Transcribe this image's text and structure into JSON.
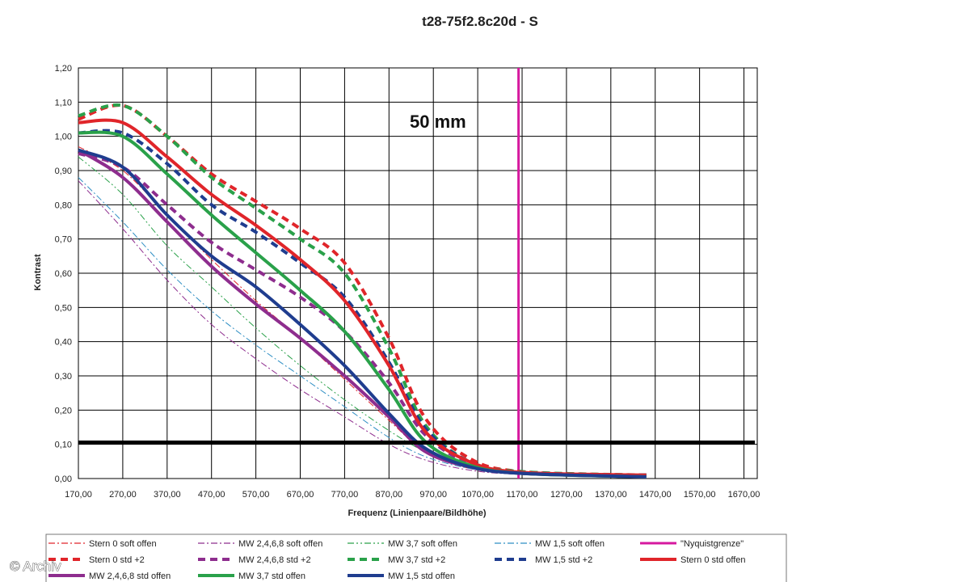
{
  "chart_data": {
    "type": "line",
    "title": "t28-75f2.8c20d - S",
    "annotation": "50 mm",
    "xlabel": "Frequenz (Linienpaare/Bildhöhe)",
    "ylabel": "Kontrast",
    "xlim": [
      170,
      1700
    ],
    "ylim": [
      0,
      1.2
    ],
    "x_ticks": [
      "170,00",
      "270,00",
      "370,00",
      "470,00",
      "570,00",
      "670,00",
      "770,00",
      "870,00",
      "970,00",
      "1070,00",
      "1170,00",
      "1270,00",
      "1370,00",
      "1470,00",
      "1570,00",
      "1670,00"
    ],
    "y_ticks": [
      "0,00",
      "0,10",
      "0,20",
      "0,30",
      "0,40",
      "0,50",
      "0,60",
      "0,70",
      "0,80",
      "0,90",
      "1,00",
      "1,10",
      "1,20"
    ],
    "grid": true,
    "legend_position": "bottom",
    "series": [
      {
        "name": "Stern 0 soft offen",
        "color": "#e0252a",
        "style": "dashdot",
        "width": 1,
        "points": [
          [
            170,
            0.97
          ],
          [
            270,
            0.9
          ],
          [
            370,
            0.77
          ],
          [
            470,
            0.64
          ],
          [
            570,
            0.52
          ],
          [
            670,
            0.41
          ],
          [
            770,
            0.29
          ],
          [
            870,
            0.17
          ],
          [
            950,
            0.08
          ],
          [
            1050,
            0.03
          ],
          [
            1170,
            0.015
          ],
          [
            1450,
            0.01
          ]
        ]
      },
      {
        "name": "MW 2,4,6,8 soft offen",
        "color": "#8e2d8e",
        "style": "dashdot",
        "width": 1,
        "points": [
          [
            170,
            0.87
          ],
          [
            270,
            0.73
          ],
          [
            370,
            0.58
          ],
          [
            470,
            0.45
          ],
          [
            570,
            0.35
          ],
          [
            670,
            0.26
          ],
          [
            770,
            0.18
          ],
          [
            870,
            0.1
          ],
          [
            950,
            0.055
          ],
          [
            1050,
            0.025
          ],
          [
            1170,
            0.012
          ],
          [
            1450,
            0.005
          ]
        ]
      },
      {
        "name": "MW 3,7 soft offen",
        "color": "#2aa14a",
        "style": "dashdot2",
        "width": 1,
        "points": [
          [
            170,
            0.94
          ],
          [
            270,
            0.83
          ],
          [
            370,
            0.68
          ],
          [
            470,
            0.56
          ],
          [
            570,
            0.44
          ],
          [
            670,
            0.33
          ],
          [
            770,
            0.23
          ],
          [
            870,
            0.14
          ],
          [
            950,
            0.08
          ],
          [
            1050,
            0.035
          ],
          [
            1170,
            0.015
          ],
          [
            1450,
            0.005
          ]
        ]
      },
      {
        "name": "MW 1,5 soft offen",
        "color": "#2f8fc4",
        "style": "dashdot",
        "width": 1,
        "points": [
          [
            170,
            0.88
          ],
          [
            270,
            0.75
          ],
          [
            370,
            0.61
          ],
          [
            470,
            0.49
          ],
          [
            570,
            0.39
          ],
          [
            670,
            0.3
          ],
          [
            770,
            0.21
          ],
          [
            870,
            0.12
          ],
          [
            950,
            0.065
          ],
          [
            1050,
            0.03
          ],
          [
            1170,
            0.012
          ],
          [
            1450,
            0.005
          ]
        ]
      },
      {
        "name": "\"Nyquistgrenze\"",
        "color": "#d6199f",
        "style": "solid",
        "width": 3,
        "points": [
          [
            1162,
            0
          ],
          [
            1162,
            1.2
          ]
        ]
      },
      {
        "name": "Stern 0 std +2",
        "color": "#e0252a",
        "style": "dash",
        "width": 4,
        "points": [
          [
            170,
            1.05
          ],
          [
            270,
            1.09
          ],
          [
            370,
            1.0
          ],
          [
            470,
            0.89
          ],
          [
            570,
            0.81
          ],
          [
            670,
            0.73
          ],
          [
            770,
            0.63
          ],
          [
            870,
            0.41
          ],
          [
            950,
            0.18
          ],
          [
            1050,
            0.06
          ],
          [
            1170,
            0.02
          ],
          [
            1450,
            0.01
          ]
        ]
      },
      {
        "name": "MW 2,4,6,8 std +2",
        "color": "#8e2d8e",
        "style": "dash",
        "width": 4,
        "points": [
          [
            170,
            0.95
          ],
          [
            270,
            0.91
          ],
          [
            370,
            0.8
          ],
          [
            470,
            0.69
          ],
          [
            570,
            0.61
          ],
          [
            670,
            0.53
          ],
          [
            770,
            0.43
          ],
          [
            870,
            0.28
          ],
          [
            950,
            0.13
          ],
          [
            1050,
            0.045
          ],
          [
            1170,
            0.015
          ],
          [
            1450,
            0.01
          ]
        ]
      },
      {
        "name": "MW 3,7 std +2",
        "color": "#2aa14a",
        "style": "dash",
        "width": 4,
        "points": [
          [
            170,
            1.06
          ],
          [
            270,
            1.09
          ],
          [
            370,
            1.0
          ],
          [
            470,
            0.88
          ],
          [
            570,
            0.79
          ],
          [
            670,
            0.7
          ],
          [
            770,
            0.6
          ],
          [
            870,
            0.38
          ],
          [
            950,
            0.16
          ],
          [
            1050,
            0.05
          ],
          [
            1170,
            0.02
          ],
          [
            1450,
            0.01
          ]
        ]
      },
      {
        "name": "MW 1,5 std +2",
        "color": "#1f3d8f",
        "style": "dash",
        "width": 4,
        "points": [
          [
            170,
            1.01
          ],
          [
            270,
            1.01
          ],
          [
            370,
            0.92
          ],
          [
            470,
            0.8
          ],
          [
            570,
            0.72
          ],
          [
            670,
            0.63
          ],
          [
            770,
            0.53
          ],
          [
            870,
            0.34
          ],
          [
            950,
            0.15
          ],
          [
            1050,
            0.05
          ],
          [
            1170,
            0.018
          ],
          [
            1450,
            0.01
          ]
        ]
      },
      {
        "name": "Stern 0 std offen",
        "color": "#e0252a",
        "style": "solid",
        "width": 4,
        "points": [
          [
            170,
            1.04
          ],
          [
            270,
            1.04
          ],
          [
            370,
            0.94
          ],
          [
            470,
            0.83
          ],
          [
            570,
            0.74
          ],
          [
            670,
            0.64
          ],
          [
            770,
            0.52
          ],
          [
            870,
            0.33
          ],
          [
            950,
            0.14
          ],
          [
            1050,
            0.05
          ],
          [
            1170,
            0.018
          ],
          [
            1450,
            0.01
          ]
        ]
      },
      {
        "name": "MW 2,4,6,8 std offen",
        "color": "#8e2d8e",
        "style": "solid",
        "width": 4,
        "points": [
          [
            170,
            0.96
          ],
          [
            270,
            0.88
          ],
          [
            370,
            0.75
          ],
          [
            470,
            0.62
          ],
          [
            570,
            0.51
          ],
          [
            670,
            0.41
          ],
          [
            770,
            0.3
          ],
          [
            870,
            0.18
          ],
          [
            950,
            0.08
          ],
          [
            1050,
            0.035
          ],
          [
            1170,
            0.015
          ],
          [
            1450,
            0.005
          ]
        ]
      },
      {
        "name": "MW 3,7 std offen",
        "color": "#2aa14a",
        "style": "solid",
        "width": 4,
        "points": [
          [
            170,
            1.01
          ],
          [
            270,
            1.0
          ],
          [
            370,
            0.89
          ],
          [
            470,
            0.77
          ],
          [
            570,
            0.66
          ],
          [
            670,
            0.55
          ],
          [
            770,
            0.43
          ],
          [
            870,
            0.26
          ],
          [
            950,
            0.11
          ],
          [
            1050,
            0.04
          ],
          [
            1170,
            0.015
          ],
          [
            1450,
            0.005
          ]
        ]
      },
      {
        "name": "MW 1,5 std offen",
        "color": "#1f3d8f",
        "style": "solid",
        "width": 4,
        "points": [
          [
            170,
            0.96
          ],
          [
            270,
            0.91
          ],
          [
            370,
            0.77
          ],
          [
            470,
            0.65
          ],
          [
            570,
            0.56
          ],
          [
            670,
            0.45
          ],
          [
            770,
            0.33
          ],
          [
            870,
            0.19
          ],
          [
            950,
            0.09
          ],
          [
            1050,
            0.035
          ],
          [
            1170,
            0.015
          ],
          [
            1450,
            0.005
          ]
        ]
      }
    ],
    "reference_line": {
      "y": 0.105,
      "color": "#000000",
      "width": 5
    }
  },
  "watermark": "© Archiv"
}
